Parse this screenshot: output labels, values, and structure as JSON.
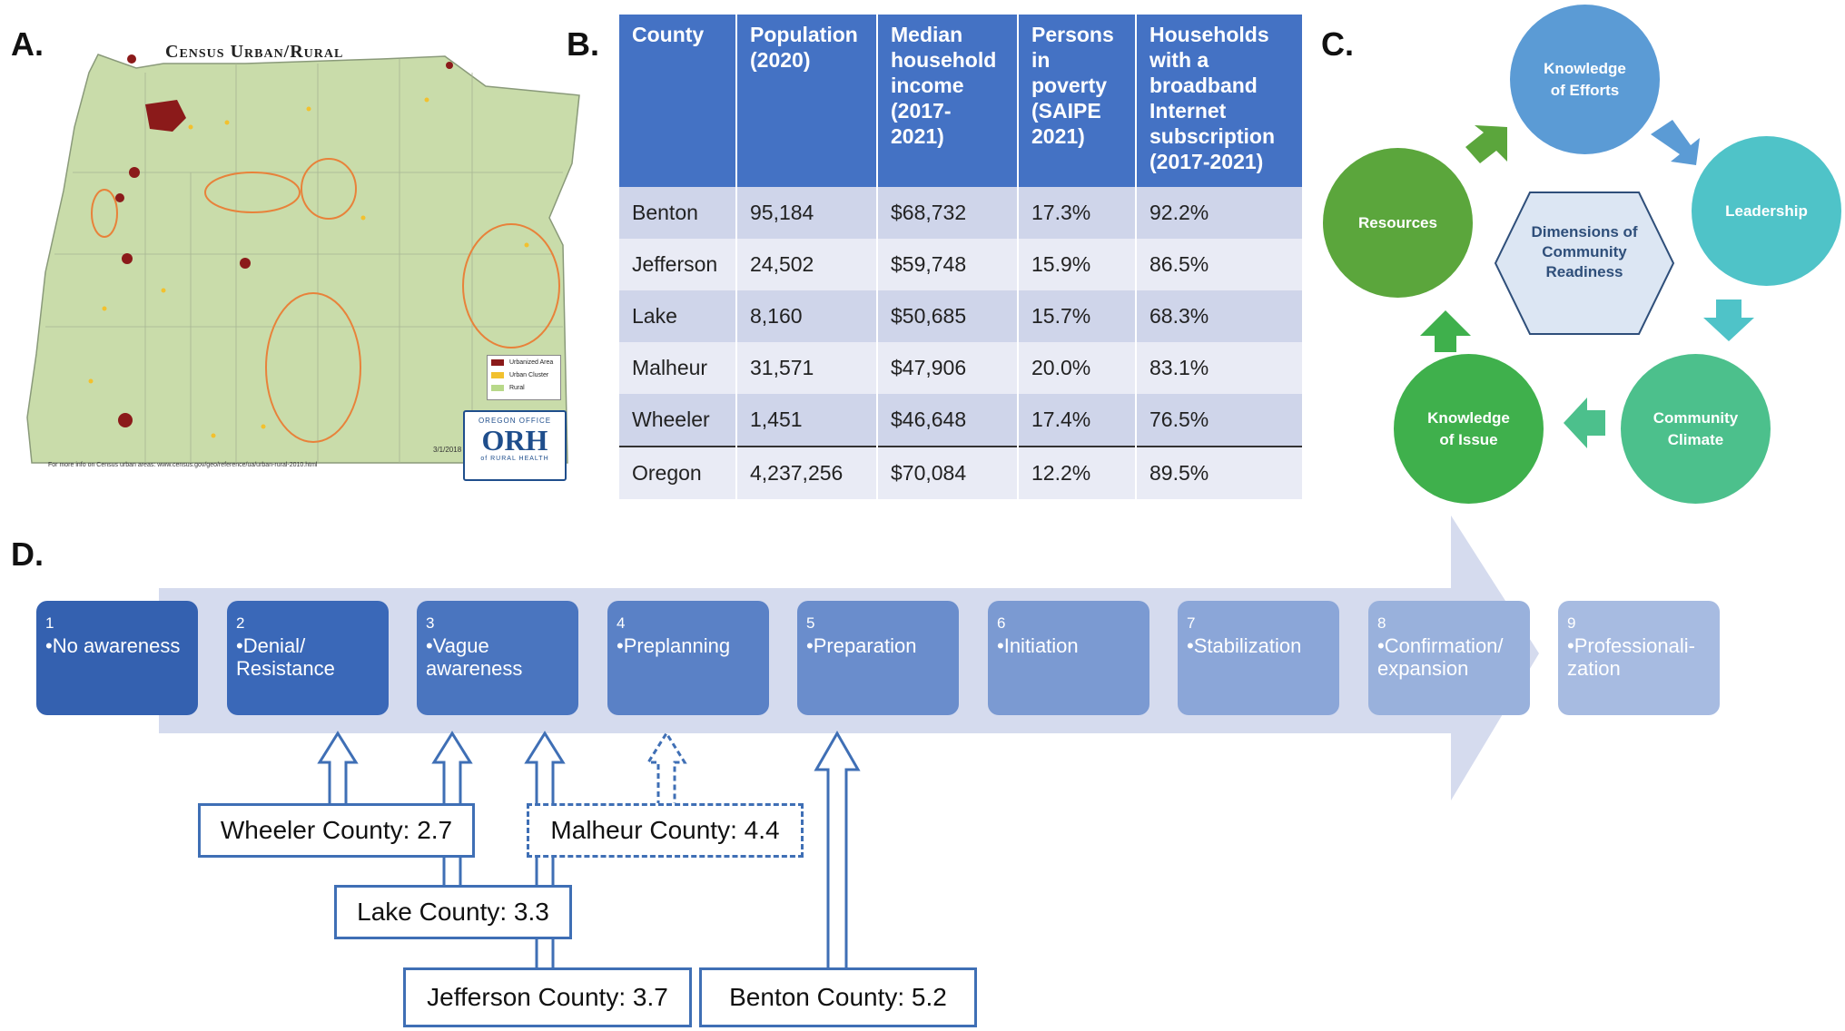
{
  "panels": {
    "a": "A.",
    "b": "B.",
    "c": "C.",
    "d": "D."
  },
  "map": {
    "title": "Census Urban/Rural",
    "date": "3/1/2018",
    "note": "For more info on Census urban areas: www.census.gov/geo/reference/ua/urban-rural-2010.html",
    "legend": [
      {
        "label": "Urbanized Area",
        "color": "#8b1a1a"
      },
      {
        "label": "Urban Cluster",
        "color": "#f2c12e"
      },
      {
        "label": "Rural",
        "color": "#b8d98a"
      }
    ],
    "logo": {
      "top": "OREGON OFFICE",
      "main": "ORH",
      "bottom": "of RURAL HEALTH"
    }
  },
  "table": {
    "headers": [
      "County",
      "Population (2020)",
      "Median household income (2017-2021)",
      "Persons in poverty (SAIPE 2021)",
      "Households with a broadband Internet subscription (2017-2021)"
    ],
    "rows": [
      [
        "Benton",
        "95,184",
        "$68,732",
        "17.3%",
        "92.2%"
      ],
      [
        "Jefferson",
        "24,502",
        "$59,748",
        "15.9%",
        "86.5%"
      ],
      [
        "Lake",
        "8,160",
        "$50,685",
        "15.7%",
        "68.3%"
      ],
      [
        "Malheur",
        "31,571",
        "$47,906",
        "20.0%",
        "83.1%"
      ],
      [
        "Wheeler",
        "1,451",
        "$46,648",
        "17.4%",
        "76.5%"
      ],
      [
        "Oregon",
        "4,237,256",
        "$70,084",
        "12.2%",
        "89.5%"
      ]
    ]
  },
  "cycle": {
    "center": "Dimensions of Community Readiness",
    "nodes": [
      {
        "label": "Knowledge of Efforts",
        "color": "#5b9bd5"
      },
      {
        "label": "Leadership",
        "color": "#4fc3c8"
      },
      {
        "label": "Community Climate",
        "color": "#4cc08c"
      },
      {
        "label": "Knowledge of Issue",
        "color": "#3fb04c"
      },
      {
        "label": "Resources",
        "color": "#5ba63c"
      }
    ]
  },
  "stages": [
    {
      "num": "1",
      "label": "•No awareness",
      "color": "#3461b0"
    },
    {
      "num": "2",
      "label": "•Denial/ Resistance",
      "color": "#3a68b8"
    },
    {
      "num": "3",
      "label": "•Vague awareness",
      "color": "#4a75bf"
    },
    {
      "num": "4",
      "label": "•Preplanning",
      "color": "#5a81c6"
    },
    {
      "num": "5",
      "label": "•Preparation",
      "color": "#6a8dcc"
    },
    {
      "num": "6",
      "label": "•Initiation",
      "color": "#7b9ad2"
    },
    {
      "num": "7",
      "label": "•Stabilization",
      "color": "#8ba6d8"
    },
    {
      "num": "8",
      "label": "•Confirmation/ expansion",
      "color": "#99b1dc"
    },
    {
      "num": "9",
      "label": "•Professionali-zation",
      "color": "#a7bbe1"
    }
  ],
  "scores": [
    {
      "label": "Wheeler County: 2.7",
      "value": 2.7,
      "dashed": false
    },
    {
      "label": "Lake County: 3.3",
      "value": 3.3,
      "dashed": false
    },
    {
      "label": "Jefferson County: 3.7",
      "value": 3.7,
      "dashed": false
    },
    {
      "label": "Malheur County: 4.4",
      "value": 4.4,
      "dashed": true
    },
    {
      "label": "Benton County: 5.2",
      "value": 5.2,
      "dashed": false
    }
  ]
}
